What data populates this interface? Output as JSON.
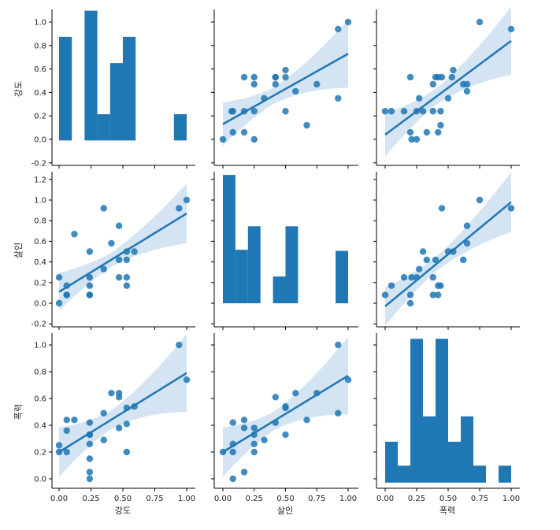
{
  "chart_data": {
    "type": "scatter",
    "kind": "pairplot",
    "variables": [
      "강도",
      "살인",
      "폭력"
    ],
    "colors": {
      "primary": "#1f77b4",
      "ci_band": "#c6dbef"
    },
    "ticks": {
      "강도": [
        "-0.2",
        "0.0",
        "0.2",
        "0.4",
        "0.6",
        "0.8",
        "1.0"
      ],
      "살인": [
        "-0.2",
        "0.0",
        "0.2",
        "0.4",
        "0.6",
        "0.8",
        "1.0",
        "1.2"
      ],
      "폭력": [
        "0.0",
        "0.2",
        "0.4",
        "0.6",
        "0.8",
        "1.0"
      ],
      "x": [
        "0.00",
        "0.25",
        "0.50",
        "0.75",
        "1.00"
      ]
    },
    "diagonal": [
      {
        "variable": "강도",
        "bin_width": 0.1,
        "bin_starts": [
          0.0,
          0.1,
          0.2,
          0.3,
          0.4,
          0.5,
          0.6,
          0.7,
          0.8,
          0.9
        ],
        "heights": [
          0.83,
          0.0,
          1.04,
          0.21,
          0.62,
          0.83,
          0.0,
          0.0,
          0.0,
          0.21
        ],
        "height_range": [
          -0.2,
          1.05
        ]
      },
      {
        "variable": "살인",
        "bin_width": 0.1,
        "bin_starts": [
          0.0,
          0.1,
          0.2,
          0.3,
          0.4,
          0.5,
          0.6,
          0.7,
          0.8,
          0.9
        ],
        "heights": [
          1.2,
          0.5,
          0.72,
          0.0,
          0.25,
          0.72,
          0.0,
          0.0,
          0.0,
          0.49
        ],
        "height_range": [
          -0.22,
          1.23
        ]
      },
      {
        "variable": "폭력",
        "bin_width": 0.1,
        "bin_starts": [
          0.0,
          0.1,
          0.2,
          0.3,
          0.4,
          0.5,
          0.6,
          0.7,
          0.8,
          0.9
        ],
        "heights": [
          0.29,
          0.12,
          1.02,
          0.47,
          1.02,
          0.29,
          0.47,
          0.12,
          0.0,
          0.12
        ],
        "height_range": [
          -0.04,
          1.06
        ]
      }
    ],
    "scatter": [
      {
        "x_var": "살인",
        "y_var": "강도",
        "x": [
          0.0,
          0.07,
          0.08,
          0.08,
          0.17,
          0.17,
          0.17,
          0.25,
          0.25,
          0.25,
          0.25,
          0.33,
          0.42,
          0.42,
          0.42,
          0.5,
          0.5,
          0.5,
          0.58,
          0.67,
          0.75,
          0.92,
          0.92,
          1.0
        ],
        "y": [
          0.0,
          0.24,
          0.06,
          0.24,
          0.53,
          0.24,
          0.06,
          0.0,
          0.24,
          0.47,
          0.53,
          0.35,
          0.47,
          0.53,
          0.53,
          0.24,
          0.53,
          0.59,
          0.41,
          0.12,
          0.47,
          0.35,
          0.94,
          1.0
        ],
        "fit": [
          0.13,
          0.73
        ]
      },
      {
        "x_var": "폭력",
        "y_var": "강도",
        "x": [
          0.0,
          0.05,
          0.15,
          0.2,
          0.2,
          0.21,
          0.25,
          0.25,
          0.27,
          0.3,
          0.33,
          0.38,
          0.38,
          0.4,
          0.42,
          0.42,
          0.44,
          0.44,
          0.45,
          0.5,
          0.53,
          0.54,
          0.62,
          0.65,
          0.65,
          0.75,
          1.0
        ],
        "y": [
          0.24,
          0.24,
          0.24,
          0.06,
          0.53,
          0.0,
          0.0,
          0.24,
          0.35,
          0.24,
          0.06,
          0.47,
          0.24,
          0.53,
          0.53,
          0.06,
          0.12,
          0.24,
          0.53,
          0.35,
          0.53,
          0.59,
          0.47,
          0.47,
          0.41,
          1.0,
          0.94
        ],
        "fit": [
          0.04,
          0.84
        ]
      },
      {
        "x_var": "강도",
        "y_var": "살인",
        "x": [
          0.0,
          0.0,
          0.06,
          0.06,
          0.06,
          0.12,
          0.24,
          0.24,
          0.24,
          0.24,
          0.24,
          0.35,
          0.35,
          0.41,
          0.47,
          0.47,
          0.47,
          0.53,
          0.53,
          0.53,
          0.53,
          0.59,
          0.94,
          1.0
        ],
        "y": [
          0.25,
          0.0,
          0.08,
          0.08,
          0.17,
          0.67,
          0.08,
          0.08,
          0.17,
          0.25,
          0.5,
          0.33,
          0.92,
          0.58,
          0.25,
          0.42,
          0.75,
          0.17,
          0.25,
          0.42,
          0.5,
          0.5,
          0.92,
          1.0
        ],
        "fit": [
          0.11,
          0.87
        ]
      },
      {
        "x_var": "폭력",
        "y_var": "살인",
        "x": [
          0.0,
          0.05,
          0.15,
          0.2,
          0.2,
          0.21,
          0.25,
          0.27,
          0.3,
          0.33,
          0.38,
          0.38,
          0.4,
          0.42,
          0.42,
          0.44,
          0.45,
          0.5,
          0.54,
          0.62,
          0.65,
          0.65,
          0.75,
          1.0
        ],
        "y": [
          0.08,
          0.17,
          0.25,
          0.0,
          0.08,
          0.25,
          0.25,
          0.33,
          0.5,
          0.42,
          0.08,
          0.25,
          0.42,
          0.08,
          0.17,
          0.17,
          0.92,
          0.5,
          0.5,
          0.42,
          0.58,
          0.75,
          1.0,
          0.92
        ],
        "fit": [
          -0.03,
          0.98
        ]
      },
      {
        "x_var": "강도",
        "y_var": "폭력",
        "x": [
          0.0,
          0.0,
          0.06,
          0.06,
          0.06,
          0.12,
          0.24,
          0.24,
          0.24,
          0.24,
          0.24,
          0.24,
          0.24,
          0.35,
          0.35,
          0.41,
          0.47,
          0.47,
          0.47,
          0.53,
          0.53,
          0.53,
          0.59,
          0.94,
          1.0
        ],
        "y": [
          0.25,
          0.2,
          0.2,
          0.36,
          0.44,
          0.44,
          0.0,
          0.05,
          0.15,
          0.26,
          0.33,
          0.33,
          0.42,
          0.29,
          0.49,
          0.64,
          0.38,
          0.61,
          0.64,
          0.2,
          0.41,
          0.53,
          0.54,
          1.0,
          0.74
        ],
        "fit": [
          0.2,
          0.79
        ]
      },
      {
        "x_var": "살인",
        "y_var": "폭력",
        "x": [
          0.0,
          0.08,
          0.08,
          0.08,
          0.08,
          0.17,
          0.17,
          0.17,
          0.25,
          0.25,
          0.25,
          0.25,
          0.33,
          0.42,
          0.42,
          0.5,
          0.5,
          0.5,
          0.58,
          0.67,
          0.75,
          0.92,
          0.92,
          1.0
        ],
        "y": [
          0.2,
          0.0,
          0.2,
          0.26,
          0.42,
          0.05,
          0.38,
          0.44,
          0.2,
          0.26,
          0.33,
          0.38,
          0.29,
          0.42,
          0.61,
          0.33,
          0.53,
          0.54,
          0.64,
          0.44,
          0.64,
          0.49,
          1.0,
          0.74
        ],
        "fit": [
          0.2,
          0.77
        ]
      }
    ]
  }
}
